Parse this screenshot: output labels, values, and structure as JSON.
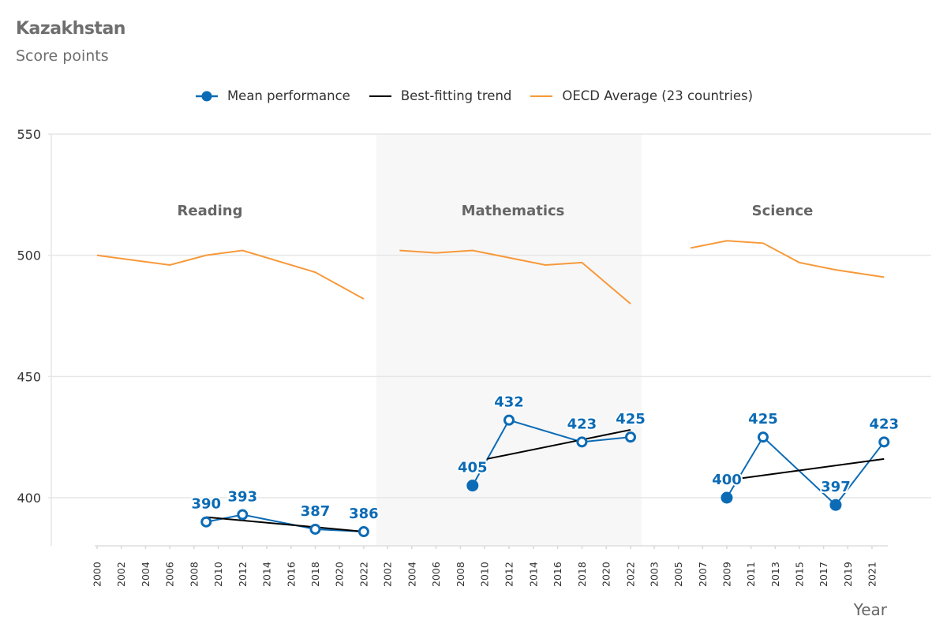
{
  "header": {
    "title": "Kazakhstan",
    "subtitle": "Score points"
  },
  "legend": {
    "items": [
      {
        "label": "Mean performance",
        "icon": "line-with-dot-marker",
        "color": "#0b6bb5"
      },
      {
        "label": "Best-fitting trend",
        "icon": "line",
        "color": "#000000"
      },
      {
        "label": "OECD Average (23 countries)",
        "icon": "line",
        "color": "#f7993a"
      }
    ]
  },
  "colors": {
    "mean": "#0b6bb5",
    "trend": "#000000",
    "oecd": "#f7993a",
    "grid": "#e6e6e6",
    "shaded_panel": "#f7f7f7"
  },
  "chart_data": {
    "type": "line",
    "title": "Kazakhstan",
    "subtitle": "Score points",
    "xlabel": "Year",
    "ylabel": "",
    "ylim": [
      380,
      550
    ],
    "yticks": [
      400,
      450,
      500,
      550
    ],
    "grid": true,
    "legend_position": "top-center",
    "panels": [
      {
        "name": "Reading",
        "shaded": false,
        "xticks": [
          "2000",
          "2002",
          "2004",
          "2006",
          "2008",
          "2010",
          "2012",
          "2014",
          "2016",
          "2018",
          "2020",
          "2022"
        ],
        "xrange": [
          2000,
          2022
        ],
        "oecd": {
          "x": [
            2000,
            2006,
            2009,
            2012,
            2018,
            2022
          ],
          "y": [
            500,
            496,
            500,
            502,
            493,
            482
          ]
        },
        "mean": {
          "x": [
            2009,
            2012,
            2018,
            2022
          ],
          "y": [
            390,
            393,
            387,
            386
          ],
          "labels": [
            "390",
            "393",
            "387",
            "386"
          ],
          "hollow": [
            true,
            true,
            true,
            true
          ]
        },
        "trend": {
          "x": [
            2009,
            2022
          ],
          "y": [
            392,
            386
          ]
        }
      },
      {
        "name": "Mathematics",
        "shaded": true,
        "xticks": [
          "2002",
          "2004",
          "2006",
          "2008",
          "2010",
          "2012",
          "2014",
          "2016",
          "2018",
          "2020",
          "2022"
        ],
        "xrange": [
          2002,
          2022
        ],
        "oecd": {
          "x": [
            2003,
            2006,
            2009,
            2012,
            2015,
            2018,
            2022
          ],
          "y": [
            502,
            501,
            502,
            499,
            496,
            497,
            480
          ]
        },
        "mean": {
          "x": [
            2009,
            2012,
            2018,
            2022
          ],
          "y": [
            405,
            432,
            423,
            425
          ],
          "labels": [
            "405",
            "432",
            "423",
            "425"
          ],
          "hollow": [
            false,
            true,
            true,
            true
          ]
        },
        "trend": {
          "x": [
            2010.2,
            2022
          ],
          "y": [
            416,
            428
          ]
        }
      },
      {
        "name": "Science",
        "shaded": false,
        "xticks": [
          "2003",
          "2005",
          "2007",
          "2009",
          "2011",
          "2013",
          "2015",
          "2017",
          "2019",
          "2021"
        ],
        "xrange": [
          2003,
          2021
        ],
        "oecd": {
          "x": [
            2006,
            2009,
            2012,
            2015,
            2018,
            2022
          ],
          "y": [
            503,
            506,
            505,
            497,
            494,
            491
          ]
        },
        "mean": {
          "x": [
            2009,
            2012,
            2018,
            2022
          ],
          "y": [
            400,
            425,
            397,
            423
          ],
          "labels": [
            "400",
            "425",
            "397",
            "423"
          ],
          "hollow": [
            false,
            true,
            false,
            true
          ]
        },
        "trend": {
          "x": [
            2010.2,
            2022
          ],
          "y": [
            408,
            416
          ]
        }
      }
    ]
  }
}
